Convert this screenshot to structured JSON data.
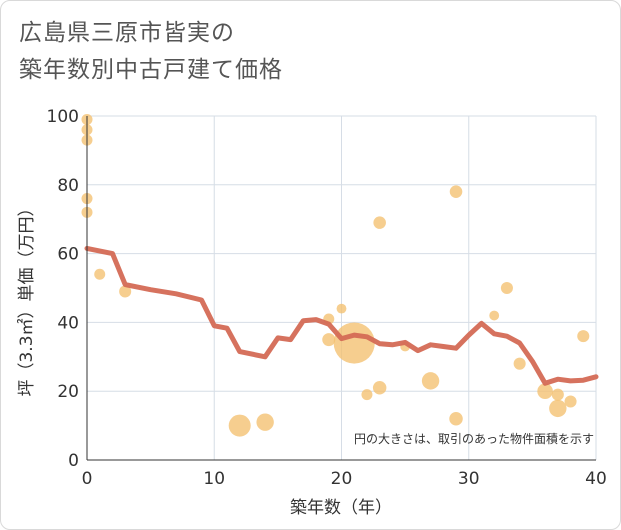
{
  "chart_data": {
    "type": "scatter",
    "title_lines": [
      "広島県三原市皆実の",
      "築年数別中古戸建て価格"
    ],
    "xlabel": "築年数（年）",
    "ylabel": "坪（3.3㎡）単価（万円）",
    "xlim": [
      0,
      40
    ],
    "ylim": [
      0,
      100
    ],
    "x_ticks": [
      0,
      10,
      20,
      30,
      40
    ],
    "y_ticks": [
      0,
      20,
      40,
      60,
      80,
      100
    ],
    "grid": true,
    "note": "円の大きさは、取引のあった物件面積を示す",
    "colors": {
      "bubble": "#f4c06f",
      "line": "#d46a55",
      "grid": "#d6dde6"
    },
    "bubbles": [
      {
        "x": 0,
        "y": 99,
        "size": 1
      },
      {
        "x": 0,
        "y": 96,
        "size": 1
      },
      {
        "x": 0,
        "y": 93,
        "size": 1
      },
      {
        "x": 0,
        "y": 76,
        "size": 1
      },
      {
        "x": 0,
        "y": 72,
        "size": 1
      },
      {
        "x": 1,
        "y": 54,
        "size": 1
      },
      {
        "x": 3,
        "y": 49,
        "size": 1.2
      },
      {
        "x": 12,
        "y": 10,
        "size": 4
      },
      {
        "x": 14,
        "y": 11,
        "size": 2.5
      },
      {
        "x": 19,
        "y": 41,
        "size": 1
      },
      {
        "x": 19,
        "y": 35,
        "size": 1.4
      },
      {
        "x": 20,
        "y": 44,
        "size": 0.8
      },
      {
        "x": 21,
        "y": 34,
        "size": 14
      },
      {
        "x": 22,
        "y": 19,
        "size": 1
      },
      {
        "x": 23,
        "y": 69,
        "size": 1.3
      },
      {
        "x": 23,
        "y": 21,
        "size": 1.5
      },
      {
        "x": 25,
        "y": 33,
        "size": 0.8
      },
      {
        "x": 27,
        "y": 23,
        "size": 2.5
      },
      {
        "x": 29,
        "y": 78,
        "size": 1.3
      },
      {
        "x": 29,
        "y": 12,
        "size": 1.5
      },
      {
        "x": 32,
        "y": 42,
        "size": 0.8
      },
      {
        "x": 33,
        "y": 50,
        "size": 1.2
      },
      {
        "x": 34,
        "y": 28,
        "size": 1.2
      },
      {
        "x": 36,
        "y": 20,
        "size": 2
      },
      {
        "x": 37,
        "y": 15,
        "size": 2.5
      },
      {
        "x": 37,
        "y": 19,
        "size": 1.2
      },
      {
        "x": 38,
        "y": 17,
        "size": 1.2
      },
      {
        "x": 39,
        "y": 36,
        "size": 1.2
      }
    ],
    "trend_line": [
      {
        "x": 0,
        "y": 61.5
      },
      {
        "x": 2,
        "y": 60
      },
      {
        "x": 3,
        "y": 51
      },
      {
        "x": 5,
        "y": 49.5
      },
      {
        "x": 7,
        "y": 48.3
      },
      {
        "x": 9,
        "y": 46.5
      },
      {
        "x": 10,
        "y": 39
      },
      {
        "x": 11,
        "y": 38.3
      },
      {
        "x": 12,
        "y": 31.5
      },
      {
        "x": 14,
        "y": 30
      },
      {
        "x": 15,
        "y": 35.5
      },
      {
        "x": 16,
        "y": 35
      },
      {
        "x": 17,
        "y": 40.5
      },
      {
        "x": 18,
        "y": 40.8
      },
      {
        "x": 19,
        "y": 39.5
      },
      {
        "x": 20,
        "y": 35.3
      },
      {
        "x": 21,
        "y": 36.3
      },
      {
        "x": 22,
        "y": 35.8
      },
      {
        "x": 23,
        "y": 33.8
      },
      {
        "x": 24,
        "y": 33.5
      },
      {
        "x": 25,
        "y": 34.2
      },
      {
        "x": 26,
        "y": 31.8
      },
      {
        "x": 27,
        "y": 33.5
      },
      {
        "x": 28,
        "y": 33
      },
      {
        "x": 29,
        "y": 32.5
      },
      {
        "x": 30,
        "y": 36.3
      },
      {
        "x": 31,
        "y": 39.7
      },
      {
        "x": 32,
        "y": 36.7
      },
      {
        "x": 33,
        "y": 36
      },
      {
        "x": 34,
        "y": 34
      },
      {
        "x": 35,
        "y": 28.7
      },
      {
        "x": 36,
        "y": 22.3
      },
      {
        "x": 37,
        "y": 23.5
      },
      {
        "x": 38,
        "y": 23
      },
      {
        "x": 39,
        "y": 23.2
      },
      {
        "x": 40,
        "y": 24.2
      }
    ]
  }
}
